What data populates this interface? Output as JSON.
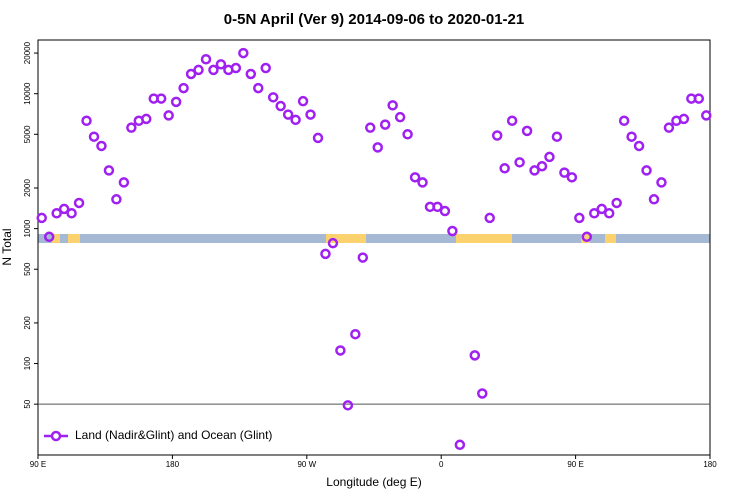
{
  "chart_data": {
    "type": "scatter",
    "title": "0-5N April (Ver 9)   2014-09-06 to 2020-01-21",
    "x_label": "Longitude (deg E)",
    "y_label": "N Total",
    "log_y": true,
    "xlim": [
      90,
      540
    ],
    "ylim": [
      21,
      25000
    ],
    "xticks": [
      {
        "value": 90,
        "label": "90 E"
      },
      180,
      {
        "value": 270,
        "label": "90 W"
      },
      {
        "value": 360,
        "label": "0"
      },
      {
        "value": 450,
        "label": "90 E"
      },
      {
        "value": 540,
        "label": "180"
      }
    ],
    "yticks": [
      50,
      100,
      200,
      500,
      1000,
      2000,
      5000,
      10000,
      20000
    ],
    "hline": 50,
    "legend_position": "bottom-left",
    "series": [
      {
        "name": "Land (Nadir&Glint) and Ocean (Glint)",
        "color": "#a020f0",
        "x": [
          92.5,
          97.5,
          102.5,
          107.5,
          112.5,
          117.5,
          122.5,
          127.5,
          132.5,
          137.5,
          142.5,
          147.5,
          152.5,
          157.5,
          162.5,
          167.5,
          172.5,
          177.5,
          182.5,
          187.5,
          192.5,
          197.5,
          202.5,
          207.5,
          212.5,
          217.5,
          222.5,
          227.5,
          232.5,
          237.5,
          242.5,
          247.5,
          252.5,
          257.5,
          262.5,
          267.5,
          272.5,
          277.5,
          282.5,
          287.5,
          292.5,
          297.5,
          302.5,
          307.5,
          312.5,
          317.5,
          322.5,
          327.5,
          332.5,
          337.5,
          342.5,
          347.5,
          352.5,
          357.5,
          362.5,
          367.5,
          372.5,
          382.5,
          387.5,
          392.5,
          397.5,
          402.5,
          407.5,
          412.5,
          417.5,
          422.5,
          427.5,
          432.5,
          437.5,
          442.5,
          447.5,
          452.5,
          457.5,
          462.5,
          467.5,
          472.5,
          477.5,
          482.5,
          487.5,
          492.5,
          497.5,
          502.5,
          507.5,
          512.5,
          517.5,
          522.5,
          527.5,
          532.5,
          537.5
        ],
        "values": [
          1200,
          870,
          1300,
          1400,
          1300,
          1550,
          6300,
          4800,
          4100,
          2700,
          1650,
          2200,
          5600,
          6300,
          6500,
          9200,
          9200,
          6900,
          8700,
          11000,
          14000,
          15000,
          18000,
          15000,
          16500,
          15000,
          15500,
          20000,
          14000,
          11000,
          15500,
          9400,
          8100,
          7000,
          6400,
          8800,
          7000,
          4700,
          650,
          780,
          125,
          49,
          165,
          610,
          5600,
          4000,
          5900,
          8200,
          6700,
          5000,
          2400,
          2200,
          1450,
          1450,
          1350,
          960,
          25,
          115,
          60,
          1200,
          4900,
          2800,
          6300,
          3100,
          5300,
          2700,
          2900,
          3400,
          4800,
          2600,
          2400,
          1200,
          870,
          1300,
          1400,
          1300,
          1550,
          6300,
          4800,
          4100,
          2700,
          1650,
          2200,
          5600,
          6300,
          6500,
          9200,
          9200,
          6900
        ]
      }
    ]
  }
}
